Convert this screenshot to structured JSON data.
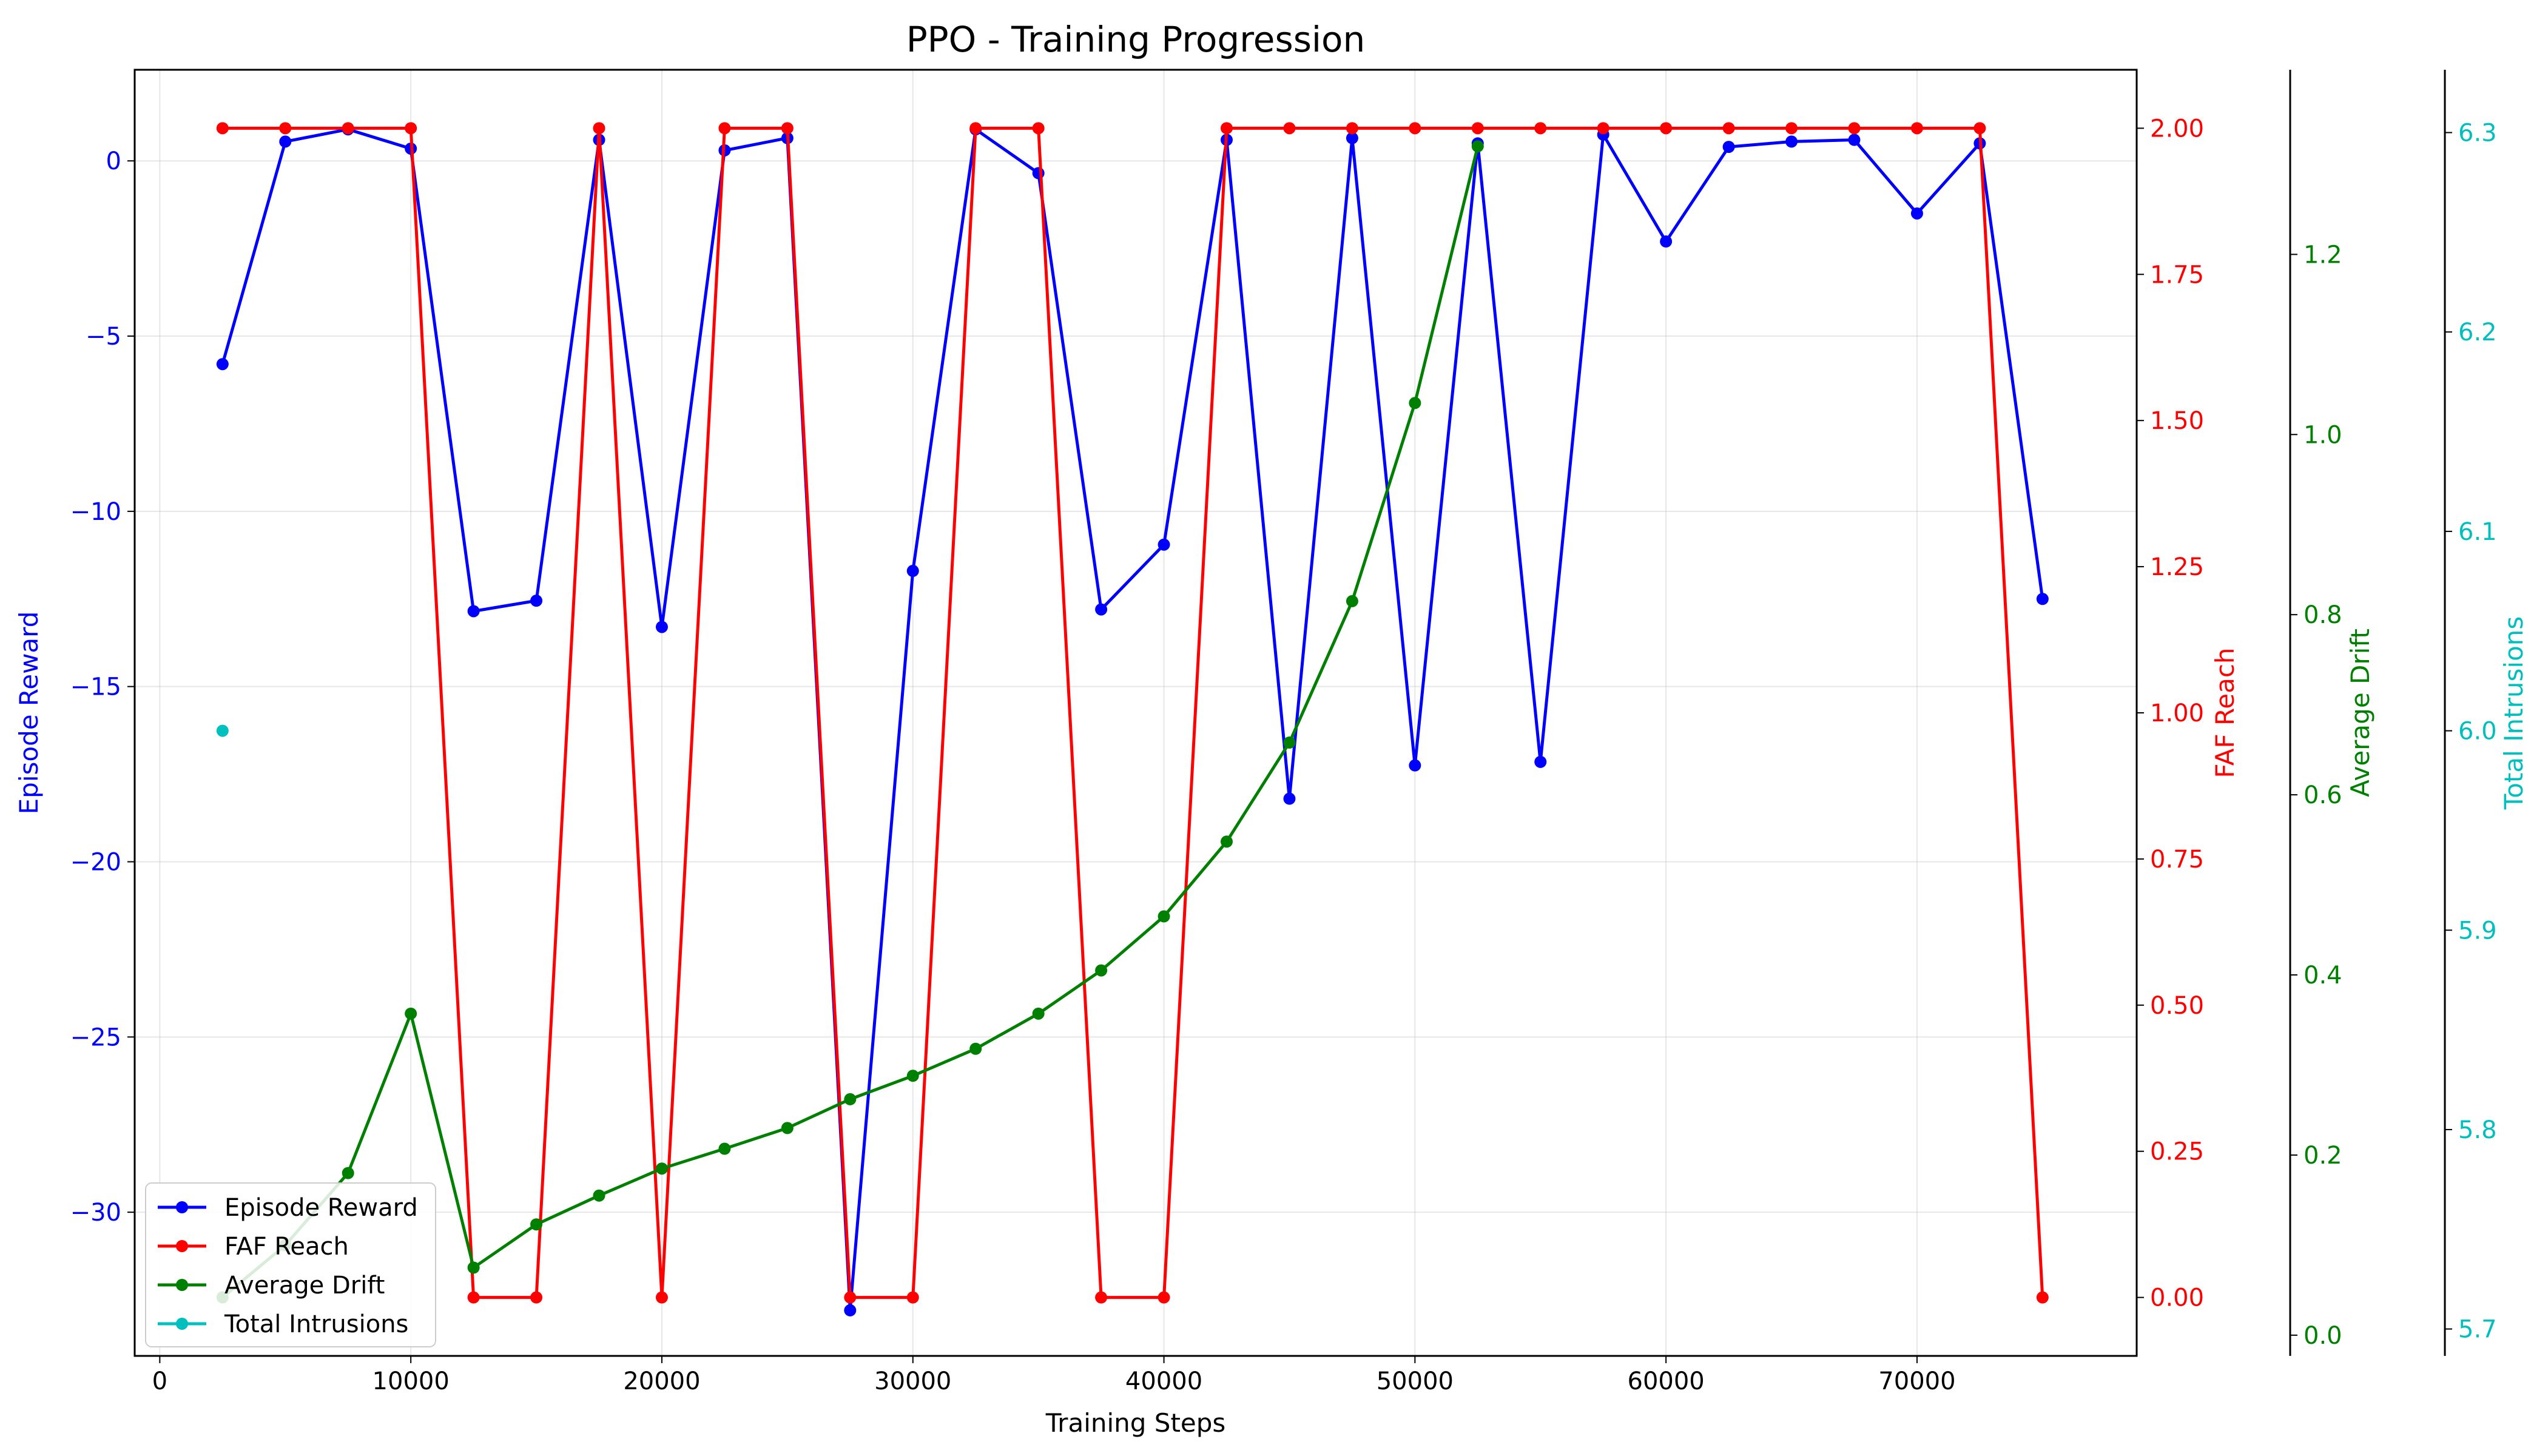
{
  "chart_data": {
    "type": "line",
    "title": "PPO - Training Progression",
    "xlabel": "Training Steps",
    "xlim": [
      -1000,
      78750
    ],
    "xticks": [
      0,
      10000,
      20000,
      30000,
      40000,
      50000,
      60000,
      70000
    ],
    "grid": true,
    "legend_position": "lower-left",
    "axes": [
      {
        "id": "reward",
        "label": "Episode Reward",
        "color": "#0000ff",
        "side": "left",
        "ylim": [
          -34.1,
          2.6
        ],
        "ticks": [
          0,
          -5,
          -10,
          -15,
          -20,
          -25,
          -30
        ]
      },
      {
        "id": "faf",
        "label": "FAF Reach",
        "color": "#ff0000",
        "side": "right",
        "ylim": [
          -0.1,
          2.1
        ],
        "ticks": [
          0.0,
          0.25,
          0.5,
          0.75,
          1.0,
          1.25,
          1.5,
          1.75,
          2.0
        ],
        "tick_decimals": 2
      },
      {
        "id": "drift",
        "label": "Average Drift",
        "color": "#008000",
        "side": "right",
        "ylim": [
          -0.023,
          1.405
        ],
        "ticks": [
          0.0,
          0.2,
          0.4,
          0.6,
          0.8,
          1.0,
          1.2
        ],
        "tick_decimals": 1
      },
      {
        "id": "intr",
        "label": "Total Intrusions",
        "color": "#00bfbf",
        "side": "right",
        "ylim": [
          5.6865,
          6.3315
        ],
        "ticks": [
          5.7,
          5.8,
          5.9,
          6.0,
          6.1,
          6.2,
          6.3
        ],
        "tick_decimals": 1
      }
    ],
    "series": [
      {
        "name": "Episode Reward",
        "axis": "reward",
        "color": "#0000ff",
        "x": [
          2500,
          5000,
          7500,
          10000,
          12500,
          15000,
          17500,
          20000,
          22500,
          25000,
          27500,
          30000,
          32500,
          35000,
          37500,
          40000,
          42500,
          45000,
          47500,
          50000,
          52500,
          55000,
          57500,
          60000,
          62500,
          65000,
          67500,
          70000,
          72500,
          75000
        ],
        "values": [
          -5.8,
          0.55,
          0.9,
          0.35,
          -12.85,
          -12.55,
          0.6,
          -13.3,
          0.3,
          0.65,
          -32.8,
          -11.7,
          0.9,
          -0.35,
          -12.8,
          -10.95,
          0.6,
          -18.2,
          0.65,
          -17.25,
          0.5,
          -17.15,
          0.75,
          -2.3,
          0.4,
          0.55,
          0.6,
          -1.5,
          0.5,
          -12.5
        ]
      },
      {
        "name": "FAF Reach",
        "axis": "faf",
        "color": "#ff0000",
        "x": [
          2500,
          5000,
          7500,
          10000,
          12500,
          15000,
          17500,
          20000,
          22500,
          25000,
          27500,
          30000,
          32500,
          35000,
          37500,
          40000,
          42500,
          45000,
          47500,
          50000,
          52500,
          55000,
          57500,
          60000,
          62500,
          65000,
          67500,
          70000,
          72500,
          75000
        ],
        "values": [
          2,
          2,
          2,
          2,
          0,
          0,
          2,
          0,
          2,
          2,
          0,
          0,
          2,
          2,
          0,
          0,
          2,
          2,
          2,
          2,
          2,
          2,
          2,
          2,
          2,
          2,
          2,
          2,
          2,
          0
        ]
      },
      {
        "name": "Average Drift",
        "axis": "drift",
        "color": "#008000",
        "x": [
          2500,
          5000,
          7500,
          10000,
          12500,
          15000,
          17500,
          20000,
          22500,
          25000,
          27500,
          30000,
          32500,
          35000,
          37500,
          40000,
          42500,
          45000,
          47500,
          50000,
          52500
        ],
        "values": [
          0.042,
          0.1,
          0.18,
          0.357,
          0.075,
          0.123,
          0.155,
          0.185,
          0.207,
          0.23,
          0.262,
          0.288,
          0.318,
          0.357,
          0.405,
          0.465,
          0.548,
          0.658,
          0.815,
          1.035,
          1.32
        ]
      },
      {
        "name": "Total Intrusions",
        "axis": "intr",
        "color": "#00bfbf",
        "x": [
          2500
        ],
        "values": [
          6.0
        ]
      }
    ]
  }
}
